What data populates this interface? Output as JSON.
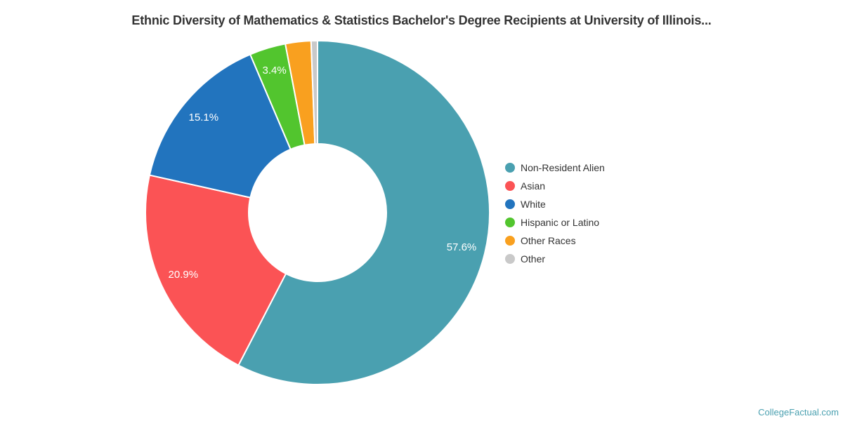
{
  "page": {
    "footer_credit": "CollegeFactual.com"
  },
  "chart_data": {
    "type": "pie",
    "title": "Ethnic Diversity of Mathematics & Statistics Bachelor's Degree Recipients at University of Illinois...",
    "donut": true,
    "inner_radius_ratio": 0.4,
    "start_angle_deg": 0,
    "direction": "clockwise",
    "grid": false,
    "legend_position": "right",
    "label_color": "#ffffff",
    "title_color": "#333333",
    "legend_text_color": "#333333",
    "credit_color": "#4AA0B0",
    "slices": [
      {
        "label": "Non-Resident Alien",
        "value": 57.6,
        "display": "57.6%",
        "color": "#4AA0B0",
        "show_label": true
      },
      {
        "label": "Asian",
        "value": 20.9,
        "display": "20.9%",
        "color": "#FB5355",
        "show_label": true
      },
      {
        "label": "White",
        "value": 15.1,
        "display": "15.1%",
        "color": "#2274BE",
        "show_label": true
      },
      {
        "label": "Hispanic or Latino",
        "value": 3.4,
        "display": "3.4%",
        "color": "#52C52E",
        "show_label": true
      },
      {
        "label": "Other Races",
        "value": 2.4,
        "display": "2.4%",
        "color": "#F9A01F",
        "show_label": false
      },
      {
        "label": "Other",
        "value": 0.6,
        "display": "0.6%",
        "color": "#C9C9C9",
        "show_label": false
      }
    ]
  }
}
